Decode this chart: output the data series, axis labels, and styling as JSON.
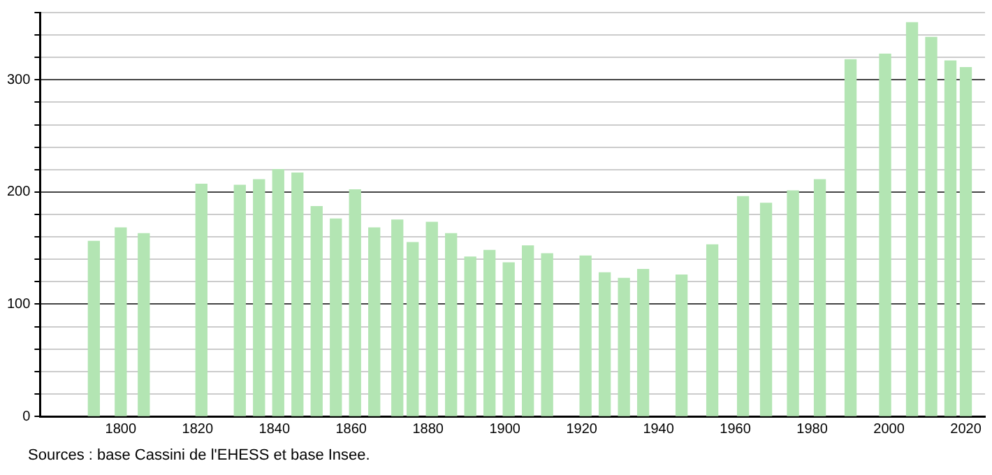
{
  "chart_data": {
    "type": "bar",
    "color": "#b3e5b3",
    "x": [
      1793,
      1800,
      1806,
      1821,
      1831,
      1836,
      1841,
      1846,
      1851,
      1856,
      1861,
      1866,
      1872,
      1876,
      1881,
      1886,
      1891,
      1896,
      1901,
      1906,
      1911,
      1921,
      1926,
      1931,
      1936,
      1946,
      1954,
      1962,
      1968,
      1975,
      1982,
      1990,
      1999,
      2006,
      2011,
      2016,
      2020
    ],
    "values": [
      156,
      168,
      163,
      207,
      206,
      211,
      220,
      217,
      187,
      176,
      202,
      168,
      175,
      155,
      173,
      163,
      142,
      148,
      137,
      152,
      145,
      143,
      128,
      123,
      131,
      126,
      153,
      196,
      190,
      201,
      211,
      318,
      323,
      351,
      338,
      317,
      311
    ],
    "xlim": [
      1779,
      2025
    ],
    "xticks": [
      1800,
      1820,
      1840,
      1860,
      1880,
      1900,
      1920,
      1940,
      1960,
      1980,
      2000,
      2020
    ],
    "ylim": [
      0,
      360
    ],
    "yticks": [
      0,
      {
        "value": 20,
        "label": null
      },
      {
        "value": 40,
        "label": null
      },
      {
        "value": 60,
        "label": null
      },
      {
        "value": 80,
        "label": null
      },
      100,
      {
        "value": 120,
        "label": null
      },
      {
        "value": 140,
        "label": null
      },
      {
        "value": 160,
        "label": null
      },
      {
        "value": 180,
        "label": null
      },
      200,
      {
        "value": 220,
        "label": null
      },
      {
        "value": 240,
        "label": null
      },
      {
        "value": 260,
        "label": null
      },
      {
        "value": 280,
        "label": null
      },
      300,
      {
        "value": 320,
        "label": null
      },
      {
        "value": 340,
        "label": null
      },
      {
        "value": 360,
        "label": null
      }
    ],
    "grid": "y",
    "annotations": [
      "Sources : base Cassini de l'EHESS et base Insee."
    ]
  }
}
